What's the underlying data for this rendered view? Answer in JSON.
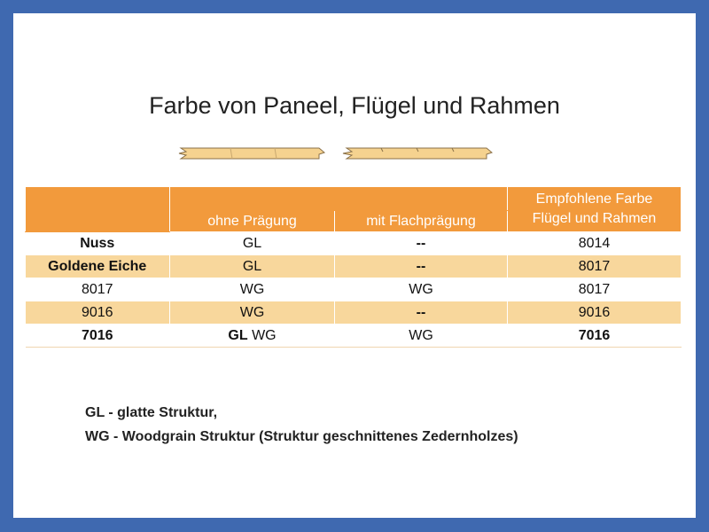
{
  "title": "Farbe von Paneel, Flügel und Rahmen",
  "table": {
    "header_recommended_line1": "Empfohlene Farbe",
    "header_recommended_line2": "Flügel und Rahmen",
    "header_col_ohne": "ohne Prägung",
    "header_col_mit": "mit Flachprägung",
    "rows": [
      {
        "name": "Nuss",
        "ohne": "GL",
        "ohne_extra": "",
        "mit": "--",
        "rec": "8014",
        "style": "white"
      },
      {
        "name": "Goldene Eiche",
        "ohne": "GL",
        "ohne_extra": "",
        "mit": "--",
        "rec": "8017",
        "style": "tan"
      },
      {
        "name": "8017",
        "ohne": "WG",
        "ohne_extra": "",
        "mit": "WG",
        "rec": "8017",
        "style": "white"
      },
      {
        "name": "9016",
        "ohne": "WG",
        "ohne_extra": "",
        "mit": "--",
        "rec": "9016",
        "style": "tan"
      },
      {
        "name": "7016",
        "ohne": "GL",
        "ohne_extra": "WG",
        "mit": "WG",
        "rec": "7016",
        "style": "white"
      }
    ]
  },
  "legend": {
    "line1": "GL - glatte Struktur,",
    "line2": "WG - Woodgrain Struktur (Struktur geschnittenes Zedernholzes)"
  },
  "colors": {
    "frame_border": "#3f69b0",
    "header_orange": "#f29a3c",
    "row_tan": "#f8d79c",
    "profile_fill": "#f5d28f"
  },
  "icons": [
    "panel-profile-icon"
  ]
}
